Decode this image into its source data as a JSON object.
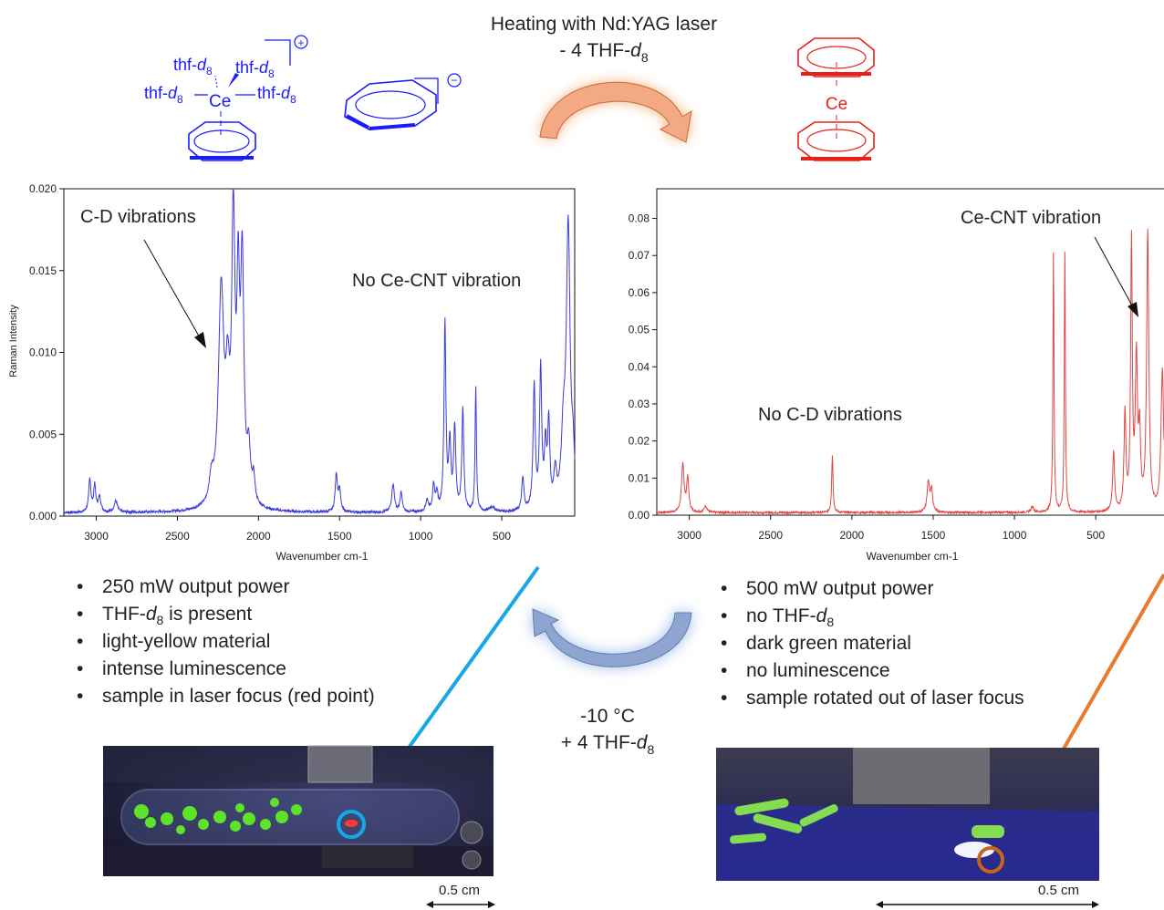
{
  "reaction": {
    "arrow_label_top": "Heating with Nd:YAG laser",
    "arrow_label_sub_top": "- 4 THF-",
    "arrow_label_sub_top_italic": "d",
    "arrow_label_sub_top_subscript": "8",
    "arrow_label_bottom_1": "-10 °C",
    "arrow_label_bottom_2": "+ 4 THF-",
    "arrow_label_bottom_italic": "d",
    "arrow_label_bottom_subscript": "8",
    "left_complex": {
      "ligand_prefix": "thf-",
      "ligand_italic": "d",
      "ligand_subscript": "8",
      "metal": "Ce",
      "cation_charge": "+",
      "anion_charge": "−",
      "color": "#1a1aff"
    },
    "right_complex": {
      "metal": "Ce",
      "color": "#e8201a"
    },
    "arrow_top_color": "#f4a06a",
    "arrow_bottom_color": "#7f9fd6"
  },
  "chart_data": [
    {
      "type": "line",
      "title": "",
      "xlabel": "Wavenumber cm-1",
      "ylabel": "Raman Intensity",
      "xlim": [
        3200,
        50
      ],
      "ylim": [
        0.0,
        0.02
      ],
      "x_ticks": [
        3000,
        2500,
        2000,
        1500,
        1000,
        500
      ],
      "x_tick_labels": [
        "3000",
        "2500",
        "2000",
        "1500",
        "1000",
        "500"
      ],
      "y_ticks": [
        0.0,
        0.005,
        0.01,
        0.015,
        0.02
      ],
      "y_tick_labels": [
        "0.000",
        "0.005",
        "0.010",
        "0.015",
        "0.020"
      ],
      "grid": false,
      "color": "#3b3bd6",
      "annotations": [
        "C-D vibrations",
        "No Ce-CNT vibration"
      ],
      "baseline": 0.0002,
      "peaks": [
        [
          3040,
          0.002,
          8
        ],
        [
          3010,
          0.0016,
          8
        ],
        [
          2980,
          0.0009,
          10
        ],
        [
          2880,
          0.0007,
          12
        ],
        [
          2290,
          0.0014,
          15
        ],
        [
          2230,
          0.013,
          20
        ],
        [
          2190,
          0.006,
          15
        ],
        [
          2155,
          0.0165,
          12
        ],
        [
          2125,
          0.0115,
          10
        ],
        [
          2100,
          0.0142,
          12
        ],
        [
          2060,
          0.003,
          12
        ],
        [
          2030,
          0.0015,
          10
        ],
        [
          1520,
          0.0023,
          8
        ],
        [
          1500,
          0.0013,
          8
        ],
        [
          1170,
          0.0017,
          10
        ],
        [
          1120,
          0.0012,
          8
        ],
        [
          960,
          0.0007,
          10
        ],
        [
          920,
          0.0015,
          8
        ],
        [
          900,
          0.001,
          8
        ],
        [
          850,
          0.0115,
          7
        ],
        [
          820,
          0.004,
          8
        ],
        [
          790,
          0.005,
          8
        ],
        [
          740,
          0.0063,
          7
        ],
        [
          660,
          0.0076,
          5
        ],
        [
          560,
          0.0003,
          20
        ],
        [
          370,
          0.002,
          8
        ],
        [
          300,
          0.0075,
          8
        ],
        [
          260,
          0.0085,
          8
        ],
        [
          230,
          0.0035,
          8
        ],
        [
          210,
          0.005,
          8
        ],
        [
          170,
          0.002,
          10
        ],
        [
          120,
          0.004,
          15
        ],
        [
          90,
          0.017,
          14
        ],
        [
          60,
          0.0025,
          10
        ]
      ]
    },
    {
      "type": "line",
      "title": "",
      "xlabel": "Wavenumber cm-1",
      "ylabel": "",
      "xlim": [
        3200,
        80
      ],
      "ylim": [
        0.0,
        0.088
      ],
      "x_ticks": [
        3000,
        2500,
        2000,
        1500,
        1000,
        500
      ],
      "x_tick_labels": [
        "3000",
        "2500",
        "2000",
        "1500",
        "1000",
        "500"
      ],
      "y_ticks": [
        0.0,
        0.01,
        0.02,
        0.03,
        0.04,
        0.05,
        0.06,
        0.07,
        0.08
      ],
      "y_tick_labels": [
        "0.00",
        "0.01",
        "0.02",
        "0.03",
        "0.04",
        "0.05",
        "0.06",
        "0.07",
        "0.08"
      ],
      "grid": false,
      "color": "#e04646",
      "annotations": [
        "Ce-CNT vibration",
        "No C-D vibrations"
      ],
      "baseline": 0.0007,
      "peaks": [
        [
          3040,
          0.013,
          9
        ],
        [
          3010,
          0.009,
          8
        ],
        [
          2900,
          0.0018,
          10
        ],
        [
          2120,
          0.0155,
          5
        ],
        [
          1530,
          0.008,
          9
        ],
        [
          1510,
          0.006,
          8
        ],
        [
          890,
          0.0015,
          10
        ],
        [
          760,
          0.07,
          4
        ],
        [
          690,
          0.07,
          4
        ],
        [
          390,
          0.016,
          7
        ],
        [
          320,
          0.026,
          7
        ],
        [
          280,
          0.072,
          6
        ],
        [
          250,
          0.04,
          8
        ],
        [
          230,
          0.019,
          7
        ],
        [
          180,
          0.075,
          8
        ],
        [
          90,
          0.038,
          10
        ]
      ]
    }
  ],
  "left_notes": {
    "items": [
      {
        "text": "250 mW output power"
      },
      {
        "text": "THF-",
        "italic": "d",
        "sub": "8",
        "rest": " is present"
      },
      {
        "text": "light-yellow material"
      },
      {
        "text": "intense luminescence"
      },
      {
        "text": "sample in laser focus (red point)"
      }
    ]
  },
  "right_notes": {
    "items": [
      {
        "text": "500 mW output power"
      },
      {
        "text": "no THF-",
        "italic": "d",
        "sub": "8",
        "rest": ""
      },
      {
        "text": "dark green material"
      },
      {
        "text": "no luminescence"
      },
      {
        "text": "sample rotated out of laser focus"
      }
    ]
  },
  "photos": {
    "left_scale": "0.5 cm",
    "right_scale": "0.5 cm",
    "left_marker_color": "#16a8e6",
    "right_marker_color": "#c8641c"
  },
  "pointer_colors": {
    "left": "#16a8e6",
    "right": "#e87a2c"
  }
}
